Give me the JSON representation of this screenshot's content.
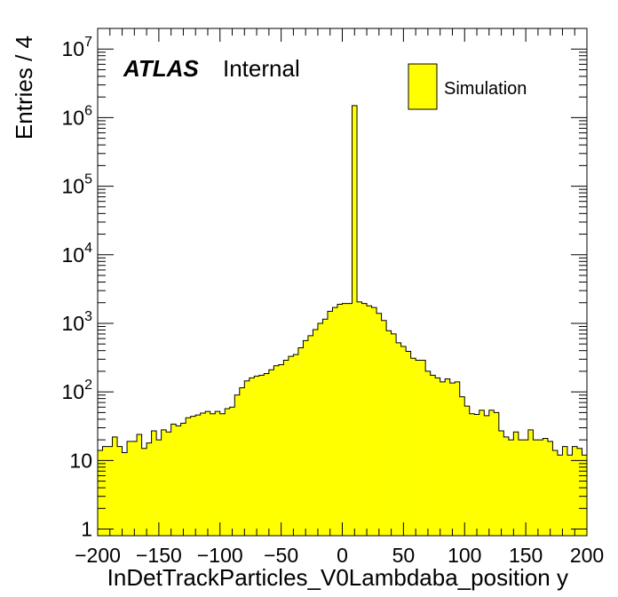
{
  "chart_data": {
    "type": "histogram",
    "xlabel": "InDetTrackParticles_V0Lambdaba_position y",
    "ylabel": "Entries / 4",
    "xlim": [
      -200,
      200
    ],
    "ylim": [
      0.8,
      20000000
    ],
    "log_y": true,
    "grid": false,
    "bin_width": 4,
    "x_ticks": [
      -200,
      -150,
      -100,
      -50,
      0,
      50,
      100,
      150,
      200
    ],
    "x_tick_labels": [
      "−200",
      "−150",
      "−100",
      "−50",
      "0",
      "50",
      "100",
      "150",
      "200"
    ],
    "y_tick_labels": [
      {
        "value": 1,
        "base": "1",
        "exp": ""
      },
      {
        "value": 10,
        "base": "10",
        "exp": ""
      },
      {
        "value": 100,
        "base": "10",
        "exp": "2"
      },
      {
        "value": 1000,
        "base": "10",
        "exp": "3"
      },
      {
        "value": 10000,
        "base": "10",
        "exp": "4"
      },
      {
        "value": 100000,
        "base": "10",
        "exp": "5"
      },
      {
        "value": 1000000,
        "base": "10",
        "exp": "6"
      },
      {
        "value": 10000000,
        "base": "10",
        "exp": "7"
      }
    ],
    "fill_color": "#ffff00",
    "line_color": "#000000",
    "legend_position": "top-right",
    "series": [
      {
        "name": "Simulation",
        "values": [
          14,
          16,
          16,
          22,
          16,
          13,
          19,
          19,
          24,
          15,
          18,
          27,
          20,
          28,
          26,
          34,
          32,
          35,
          42,
          44,
          46,
          49,
          52,
          48,
          52,
          48,
          57,
          60,
          90,
          115,
          145,
          160,
          170,
          175,
          185,
          210,
          240,
          250,
          290,
          330,
          350,
          440,
          560,
          660,
          810,
          1000,
          1150,
          1500,
          1700,
          1900,
          1950,
          1950,
          1500000,
          2050,
          1950,
          1800,
          1700,
          1400,
          1100,
          780,
          700,
          520,
          460,
          390,
          310,
          290,
          290,
          200,
          175,
          160,
          140,
          155,
          135,
          140,
          85,
          62,
          48,
          47,
          54,
          45,
          54,
          50,
          27,
          22,
          20,
          26,
          20,
          20,
          28,
          20,
          20,
          21,
          19,
          14,
          12,
          16,
          12,
          16,
          15,
          12
        ]
      }
    ]
  },
  "labels": {
    "atlas": "ATLAS",
    "internal": "Internal",
    "legend_label": "Simulation"
  }
}
